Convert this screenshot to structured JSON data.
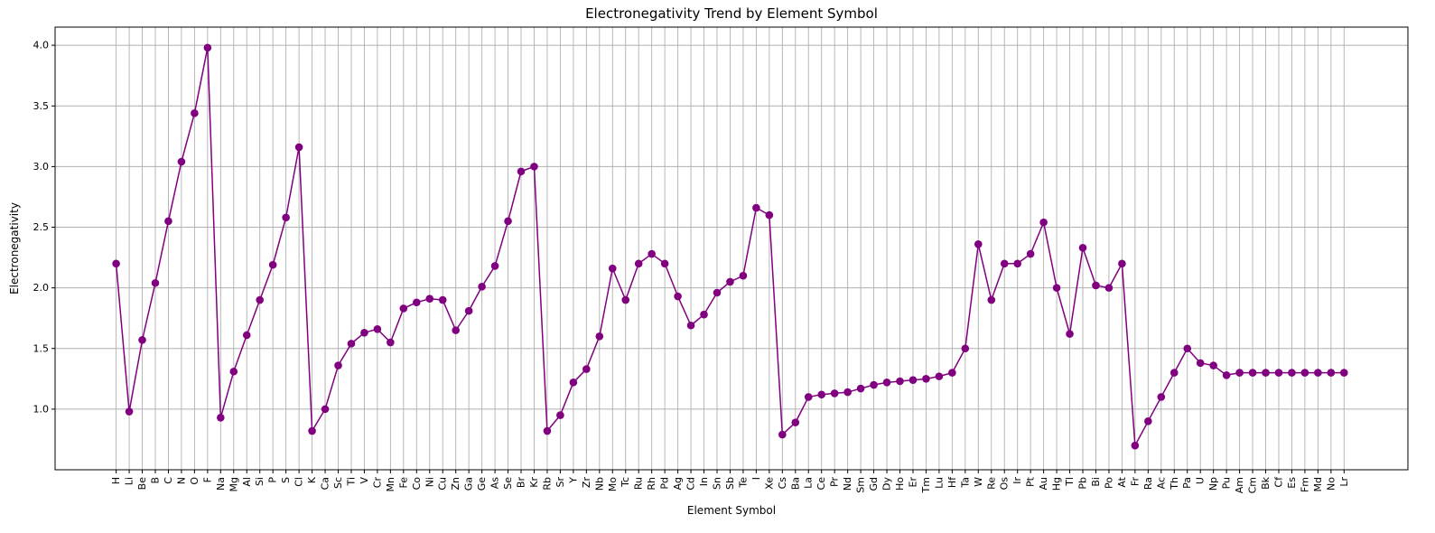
{
  "chart_data": {
    "type": "line",
    "title": "Electronegativity Trend by Element Symbol",
    "xlabel": "Element Symbol",
    "ylabel": "Electronegativity",
    "ylim": [
      0.5,
      4.15
    ],
    "yticks": [
      "1.0",
      "1.5",
      "2.0",
      "2.5",
      "3.0",
      "3.5",
      "4.0"
    ],
    "grid": true,
    "color": "#800080",
    "marker": "circle",
    "categories": [
      "H",
      "Li",
      "Be",
      "B",
      "C",
      "N",
      "O",
      "F",
      "Na",
      "Mg",
      "Al",
      "Si",
      "P",
      "S",
      "Cl",
      "K",
      "Ca",
      "Sc",
      "Ti",
      "V",
      "Cr",
      "Mn",
      "Fe",
      "Co",
      "Ni",
      "Cu",
      "Zn",
      "Ga",
      "Ge",
      "As",
      "Se",
      "Br",
      "Kr",
      "Rb",
      "Sr",
      "Y",
      "Zr",
      "Nb",
      "Mo",
      "Tc",
      "Ru",
      "Rh",
      "Pd",
      "Ag",
      "Cd",
      "In",
      "Sn",
      "Sb",
      "Te",
      "I",
      "Xe",
      "Cs",
      "Ba",
      "La",
      "Ce",
      "Pr",
      "Nd",
      "Sm",
      "Gd",
      "Dy",
      "Ho",
      "Er",
      "Tm",
      "Lu",
      "Hf",
      "Ta",
      "W",
      "Re",
      "Os",
      "Ir",
      "Pt",
      "Au",
      "Hg",
      "Tl",
      "Pb",
      "Bi",
      "Po",
      "At",
      "Fr",
      "Ra",
      "Ac",
      "Th",
      "Pa",
      "U",
      "Np",
      "Pu",
      "Am",
      "Cm",
      "Bk",
      "Cf",
      "Es",
      "Fm",
      "Md",
      "No",
      "Lr"
    ],
    "values": [
      2.2,
      0.98,
      1.57,
      2.04,
      2.55,
      3.04,
      3.44,
      3.98,
      0.93,
      1.31,
      1.61,
      1.9,
      2.19,
      2.58,
      3.16,
      0.82,
      1.0,
      1.36,
      1.54,
      1.63,
      1.66,
      1.55,
      1.83,
      1.88,
      1.91,
      1.9,
      1.65,
      1.81,
      2.01,
      2.18,
      2.55,
      2.96,
      3.0,
      0.82,
      0.95,
      1.22,
      1.33,
      1.6,
      2.16,
      1.9,
      2.2,
      2.28,
      2.2,
      1.93,
      1.69,
      1.78,
      1.96,
      2.05,
      2.1,
      2.66,
      2.6,
      0.79,
      0.89,
      1.1,
      1.12,
      1.13,
      1.14,
      1.17,
      1.2,
      1.22,
      1.23,
      1.24,
      1.25,
      1.27,
      1.3,
      1.5,
      2.36,
      1.9,
      2.2,
      2.2,
      2.28,
      2.54,
      2.0,
      1.62,
      2.33,
      2.02,
      2.0,
      2.2,
      0.7,
      0.9,
      1.1,
      1.3,
      1.5,
      1.38,
      1.36,
      1.28,
      1.3,
      1.3,
      1.3,
      1.3,
      1.3,
      1.3,
      1.3,
      1.3,
      1.3
    ]
  }
}
